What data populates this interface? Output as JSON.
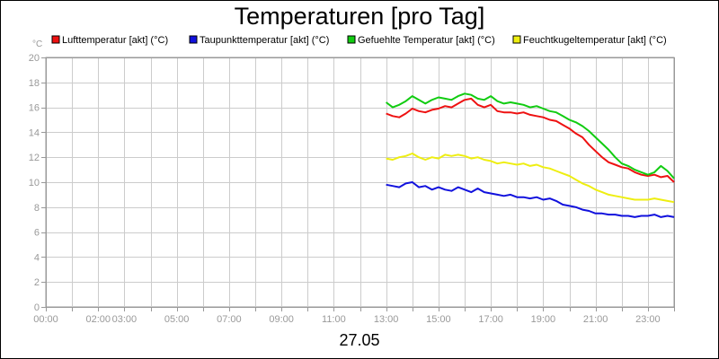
{
  "chart_data": {
    "type": "line",
    "title": "Temperaturen [pro Tag]",
    "date_label": "27.05",
    "y_unit": "°C",
    "ylim": [
      0,
      20
    ],
    "y_ticks": [
      "0",
      "2",
      "4",
      "6",
      "8",
      "10",
      "12",
      "14",
      "16",
      "18",
      "20"
    ],
    "x_unit": "hours",
    "xlim": [
      0,
      24
    ],
    "x_ticks": [
      {
        "value": 0,
        "label": "00:00"
      },
      {
        "value": 2,
        "label": "02:00"
      },
      {
        "value": 3,
        "label": "03:00"
      },
      {
        "value": 5,
        "label": "05:00"
      },
      {
        "value": 7,
        "label": "07:00"
      },
      {
        "value": 9,
        "label": "09:00"
      },
      {
        "value": 11,
        "label": "11:00"
      },
      {
        "value": 13,
        "label": "13:00"
      },
      {
        "value": 15,
        "label": "15:00"
      },
      {
        "value": 17,
        "label": "17:00"
      },
      {
        "value": 19,
        "label": "19:00"
      },
      {
        "value": 21,
        "label": "21:00"
      },
      {
        "value": 23,
        "label": "23:00"
      }
    ],
    "grid": true,
    "legend_position": "top",
    "series": [
      {
        "name": "Lufttemperatur [akt] (°C)",
        "color": "#ee1111",
        "x": [
          13.0,
          13.25,
          13.5,
          13.75,
          14.0,
          14.25,
          14.5,
          14.75,
          15.0,
          15.25,
          15.5,
          15.75,
          16.0,
          16.25,
          16.5,
          16.75,
          17.0,
          17.25,
          17.5,
          17.75,
          18.0,
          18.25,
          18.5,
          18.75,
          19.0,
          19.25,
          19.5,
          19.75,
          20.0,
          20.25,
          20.5,
          20.75,
          21.0,
          21.25,
          21.5,
          21.75,
          22.0,
          22.25,
          22.5,
          22.75,
          23.0,
          23.25,
          23.5,
          23.75,
          24.0
        ],
        "y": [
          15.5,
          15.3,
          15.2,
          15.5,
          15.9,
          15.7,
          15.6,
          15.8,
          15.9,
          16.1,
          16.0,
          16.3,
          16.6,
          16.7,
          16.2,
          16.0,
          16.2,
          15.7,
          15.6,
          15.6,
          15.5,
          15.6,
          15.4,
          15.3,
          15.2,
          15.0,
          14.9,
          14.6,
          14.3,
          13.9,
          13.6,
          13.0,
          12.5,
          12.0,
          11.6,
          11.4,
          11.2,
          11.1,
          10.8,
          10.6,
          10.5,
          10.6,
          10.4,
          10.5,
          10.0
        ]
      },
      {
        "name": "Taupunkttemperatur [akt] (°C)",
        "color": "#1111dd",
        "x": [
          13.0,
          13.25,
          13.5,
          13.75,
          14.0,
          14.25,
          14.5,
          14.75,
          15.0,
          15.25,
          15.5,
          15.75,
          16.0,
          16.25,
          16.5,
          16.75,
          17.0,
          17.25,
          17.5,
          17.75,
          18.0,
          18.25,
          18.5,
          18.75,
          19.0,
          19.25,
          19.5,
          19.75,
          20.0,
          20.25,
          20.5,
          20.75,
          21.0,
          21.25,
          21.5,
          21.75,
          22.0,
          22.25,
          22.5,
          22.75,
          23.0,
          23.25,
          23.5,
          23.75,
          24.0
        ],
        "y": [
          9.8,
          9.7,
          9.6,
          9.9,
          10.0,
          9.6,
          9.7,
          9.4,
          9.6,
          9.4,
          9.3,
          9.6,
          9.4,
          9.2,
          9.5,
          9.2,
          9.1,
          9.0,
          8.9,
          9.0,
          8.8,
          8.8,
          8.7,
          8.8,
          8.6,
          8.7,
          8.5,
          8.2,
          8.1,
          8.0,
          7.8,
          7.7,
          7.5,
          7.5,
          7.4,
          7.4,
          7.3,
          7.3,
          7.2,
          7.3,
          7.3,
          7.4,
          7.2,
          7.3,
          7.2
        ]
      },
      {
        "name": "Gefuehlte Temperatur [akt] (°C)",
        "color": "#11cc11",
        "x": [
          13.0,
          13.25,
          13.5,
          13.75,
          14.0,
          14.25,
          14.5,
          14.75,
          15.0,
          15.25,
          15.5,
          15.75,
          16.0,
          16.25,
          16.5,
          16.75,
          17.0,
          17.25,
          17.5,
          17.75,
          18.0,
          18.25,
          18.5,
          18.75,
          19.0,
          19.25,
          19.5,
          19.75,
          20.0,
          20.25,
          20.5,
          20.75,
          21.0,
          21.25,
          21.5,
          21.75,
          22.0,
          22.25,
          22.5,
          22.75,
          23.0,
          23.25,
          23.5,
          23.75,
          24.0
        ],
        "y": [
          16.4,
          16.0,
          16.2,
          16.5,
          16.9,
          16.6,
          16.3,
          16.6,
          16.8,
          16.7,
          16.6,
          16.9,
          17.1,
          17.0,
          16.7,
          16.6,
          16.9,
          16.5,
          16.3,
          16.4,
          16.3,
          16.2,
          16.0,
          16.1,
          15.9,
          15.7,
          15.6,
          15.3,
          15.0,
          14.8,
          14.5,
          14.1,
          13.6,
          13.1,
          12.6,
          12.0,
          11.5,
          11.3,
          11.0,
          10.8,
          10.6,
          10.8,
          11.3,
          10.9,
          10.3
        ]
      },
      {
        "name": "Feuchtkugeltemperatur [akt] (°C)",
        "color": "#eeee11",
        "x": [
          13.0,
          13.25,
          13.5,
          13.75,
          14.0,
          14.25,
          14.5,
          14.75,
          15.0,
          15.25,
          15.5,
          15.75,
          16.0,
          16.25,
          16.5,
          16.75,
          17.0,
          17.25,
          17.5,
          17.75,
          18.0,
          18.25,
          18.5,
          18.75,
          19.0,
          19.25,
          19.5,
          19.75,
          20.0,
          20.25,
          20.5,
          20.75,
          21.0,
          21.25,
          21.5,
          21.75,
          22.0,
          22.25,
          22.5,
          22.75,
          23.0,
          23.25,
          23.5,
          23.75,
          24.0
        ],
        "y": [
          11.9,
          11.8,
          12.0,
          12.1,
          12.3,
          12.0,
          11.8,
          12.0,
          11.9,
          12.2,
          12.1,
          12.2,
          12.1,
          11.9,
          12.0,
          11.8,
          11.7,
          11.5,
          11.6,
          11.5,
          11.4,
          11.5,
          11.3,
          11.4,
          11.2,
          11.1,
          10.9,
          10.7,
          10.5,
          10.2,
          9.9,
          9.7,
          9.4,
          9.2,
          9.0,
          8.9,
          8.8,
          8.7,
          8.6,
          8.6,
          8.6,
          8.7,
          8.6,
          8.5,
          8.4
        ]
      }
    ]
  }
}
